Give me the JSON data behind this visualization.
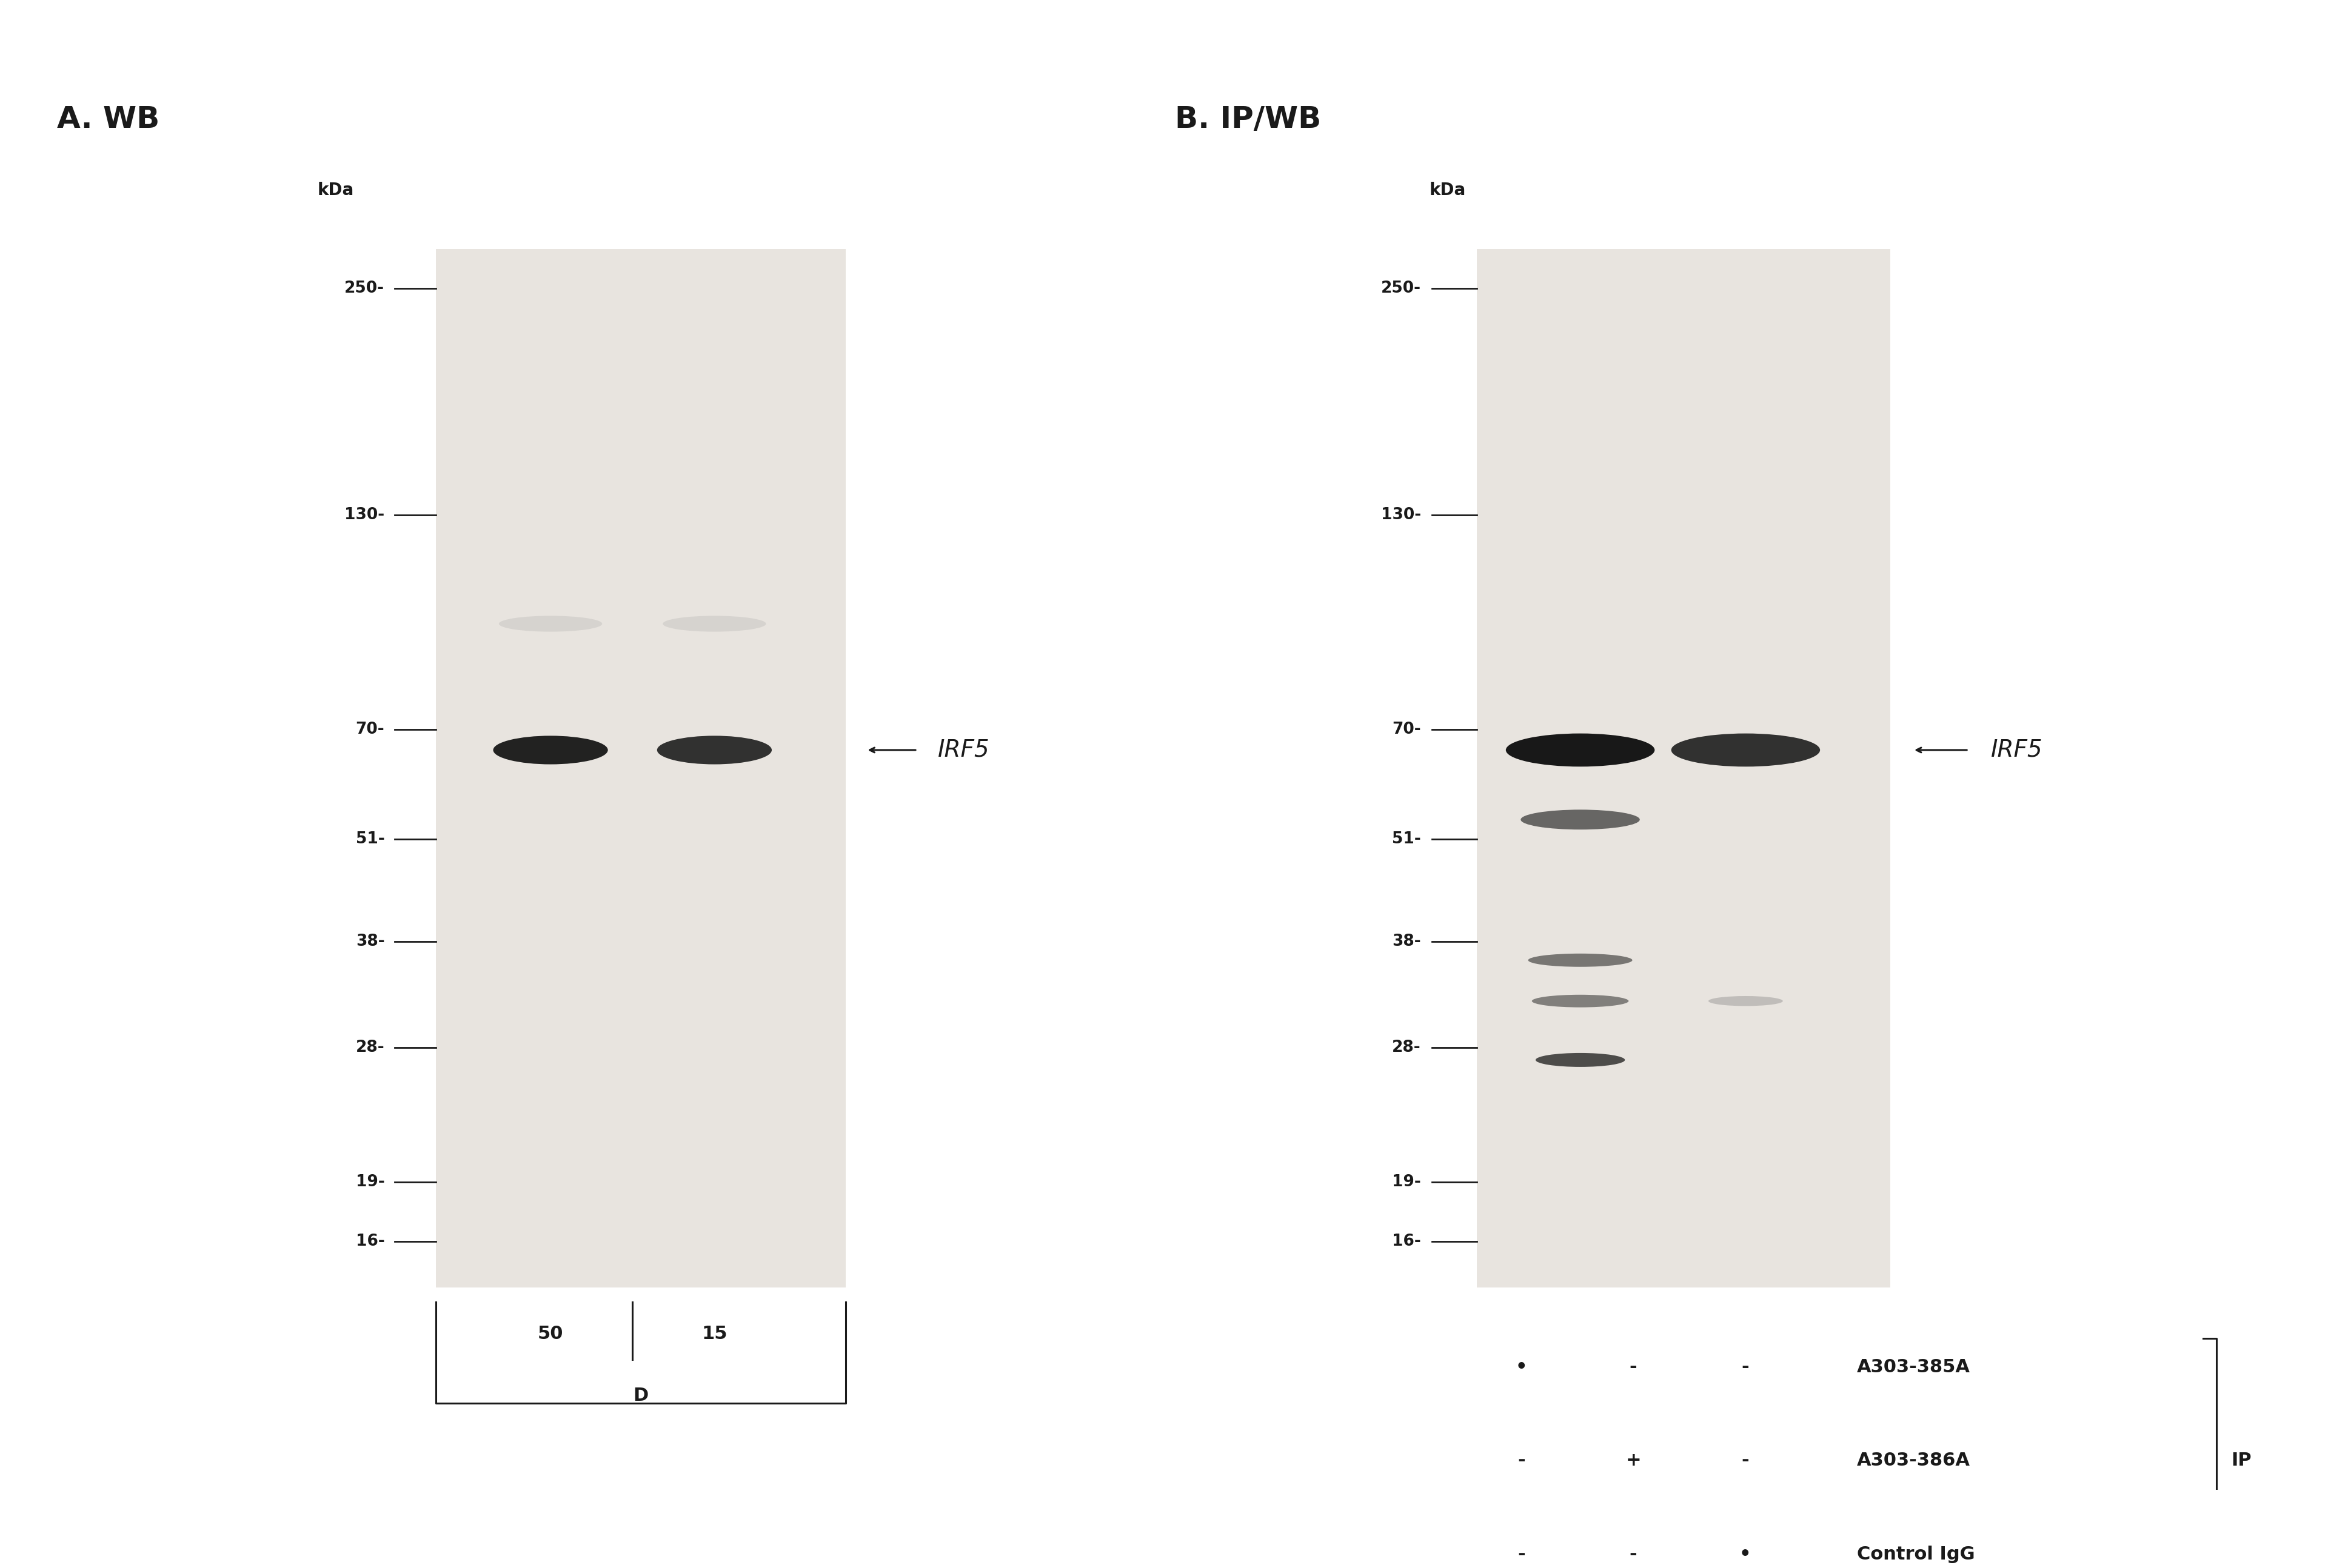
{
  "bg_color": "#ffffff",
  "blot_bg": "#e8e4df",
  "title_A": "A. WB",
  "title_B": "B. IP/WB",
  "kda_label": "kDa",
  "mw_markers": [
    250,
    130,
    70,
    51,
    38,
    28,
    19,
    16
  ],
  "irf5_label": "IRF5",
  "lane_labels_A": [
    "50",
    "15"
  ],
  "group_label_A": "D",
  "ip_label": "IP",
  "font_color": "#1a1a1a",
  "band_color_dark": "#111111",
  "legend_rows": [
    {
      "col1": "•",
      "col2": "-",
      "col3": "-",
      "label": "A303-385A"
    },
    {
      "col1": "-",
      "col2": "+",
      "col3": "-",
      "label": "A303-386A"
    },
    {
      "col1": "-",
      "col2": "-",
      "col3": "•",
      "label": "Control IgG"
    }
  ]
}
